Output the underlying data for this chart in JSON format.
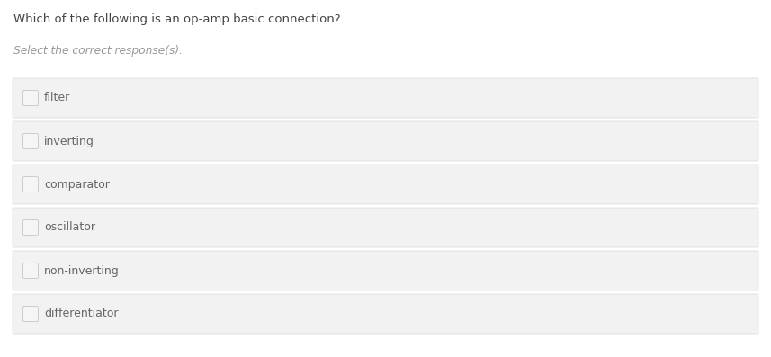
{
  "title": "Which of the following is an op-amp basic connection?",
  "subtitle": "Select the correct response(s):",
  "options": [
    "filter",
    "inverting",
    "comparator",
    "oscillator",
    "non-inverting",
    "differentiator"
  ],
  "bg_color": "#ffffff",
  "option_bg_color": "#f2f2f2",
  "option_border_color": "#d8d8d8",
  "title_color": "#444444",
  "subtitle_color": "#999999",
  "option_text_color": "#666666",
  "checkbox_border_color": "#cccccc",
  "checkbox_fill": "#f5f5f5",
  "title_fontsize": 9.5,
  "subtitle_fontsize": 8.8,
  "option_fontsize": 9.0,
  "fig_width": 8.57,
  "fig_height": 3.97,
  "dpi": 100
}
